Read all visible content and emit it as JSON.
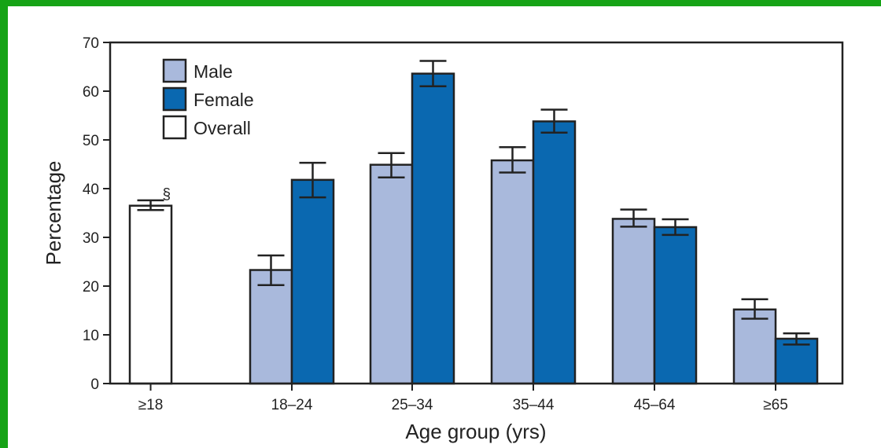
{
  "chart_data": {
    "type": "bar",
    "xlabel": "Age group (yrs)",
    "ylabel": "Percentage",
    "ylim": [
      0,
      70
    ],
    "yticks": [
      0,
      10,
      20,
      30,
      40,
      50,
      60,
      70
    ],
    "grid": false,
    "legend_position": "top-left",
    "legend": [
      "Male",
      "Female",
      "Overall"
    ],
    "overall": {
      "category": "≥18",
      "value": 36.5,
      "error_low": 35.6,
      "error_high": 37.6,
      "annotation": "§",
      "color": "#ffffff"
    },
    "categories": [
      "18–24",
      "25–34",
      "35–44",
      "45–64",
      "≥65"
    ],
    "series": [
      {
        "name": "Male",
        "color": "#a9b9dc",
        "values": [
          23.3,
          44.9,
          45.8,
          33.8,
          15.2
        ],
        "error_low": [
          20.2,
          42.3,
          43.3,
          32.2,
          13.3
        ],
        "error_high": [
          26.3,
          47.3,
          48.5,
          35.7,
          17.3
        ]
      },
      {
        "name": "Female",
        "color": "#0a68b0",
        "values": [
          41.8,
          63.6,
          53.8,
          32.1,
          9.2
        ],
        "error_low": [
          38.2,
          61.0,
          51.5,
          30.5,
          8.0
        ],
        "error_high": [
          45.3,
          66.2,
          56.2,
          33.7,
          10.3
        ]
      }
    ]
  }
}
